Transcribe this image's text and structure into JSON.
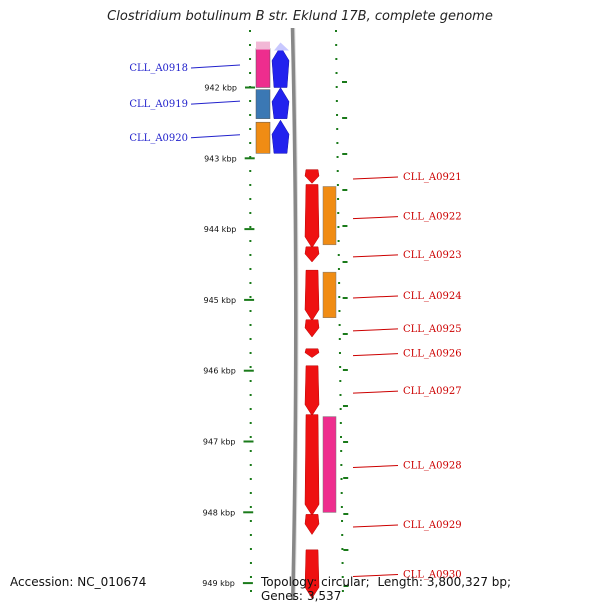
{
  "title": "Clostridium botulinum B str. Eklund 17B, complete genome",
  "footer": {
    "accession_label": "Accession:",
    "accession": "NC_010674",
    "topology_label": "Topology:",
    "topology": "circular;",
    "length_label": "Length:",
    "length": "3,800,327 bp;",
    "genes_label": "Genes:",
    "genes": "3,537"
  },
  "ruler": {
    "ticks": [
      {
        "label": "942 kbp",
        "kbp": 942
      },
      {
        "label": "943 kbp",
        "kbp": 943
      },
      {
        "label": "944 kbp",
        "kbp": 944
      },
      {
        "label": "945 kbp",
        "kbp": 945
      },
      {
        "label": "946 kbp",
        "kbp": 946
      },
      {
        "label": "947 kbp",
        "kbp": 947
      },
      {
        "label": "948 kbp",
        "kbp": 948
      },
      {
        "label": "949 kbp",
        "kbp": 949
      }
    ]
  },
  "genes": [
    {
      "id": "CLL_A0918",
      "strand": "reverse",
      "start_kbp": 941.45,
      "end_kbp": 942.0,
      "color": "#2222ee",
      "cog_color": "#ee2d8e"
    },
    {
      "id": "CLL_A0919",
      "strand": "reverse",
      "start_kbp": 942.03,
      "end_kbp": 942.44,
      "color": "#2222ee",
      "cog_color": "#3b78b4"
    },
    {
      "id": "CLL_A0920",
      "strand": "reverse",
      "start_kbp": 942.49,
      "end_kbp": 942.93,
      "color": "#2222ee",
      "cog_color": "#f08c14"
    },
    {
      "id": "CLL_A0921",
      "strand": "forward",
      "start_kbp": 943.16,
      "end_kbp": 943.34,
      "color": "#ee1111"
    },
    {
      "id": "CLL_A0922",
      "strand": "forward",
      "start_kbp": 943.37,
      "end_kbp": 944.25,
      "color": "#ee1111",
      "cog_color": "#f08c14"
    },
    {
      "id": "CLL_A0923",
      "strand": "forward",
      "start_kbp": 944.25,
      "end_kbp": 944.45,
      "color": "#ee1111"
    },
    {
      "id": "CLL_A0924",
      "strand": "forward",
      "start_kbp": 944.58,
      "end_kbp": 945.28,
      "color": "#ee1111",
      "cog_color": "#f08c14"
    },
    {
      "id": "CLL_A0925",
      "strand": "forward",
      "start_kbp": 945.28,
      "end_kbp": 945.51,
      "color": "#ee1111"
    },
    {
      "id": "CLL_A0926",
      "strand": "forward",
      "start_kbp": 945.69,
      "end_kbp": 945.8,
      "color": "#ee1111"
    },
    {
      "id": "CLL_A0927",
      "strand": "forward",
      "start_kbp": 945.93,
      "end_kbp": 946.62,
      "color": "#ee1111"
    },
    {
      "id": "CLL_A0928",
      "strand": "forward",
      "start_kbp": 946.62,
      "end_kbp": 948.03,
      "color": "#ee1111",
      "cog_color": "#ee2d8e"
    },
    {
      "id": "CLL_A0929",
      "strand": "forward",
      "start_kbp": 948.03,
      "end_kbp": 948.3,
      "color": "#ee1111"
    },
    {
      "id": "CLL_A0930",
      "strand": "forward",
      "start_kbp": 948.53,
      "end_kbp": 949.2,
      "color": "#ee1111"
    }
  ],
  "colors": {
    "backbone": "#888888",
    "tick": "#1a7a1a",
    "reverse_label": "#2222cc",
    "forward_label": "#cc0000"
  }
}
